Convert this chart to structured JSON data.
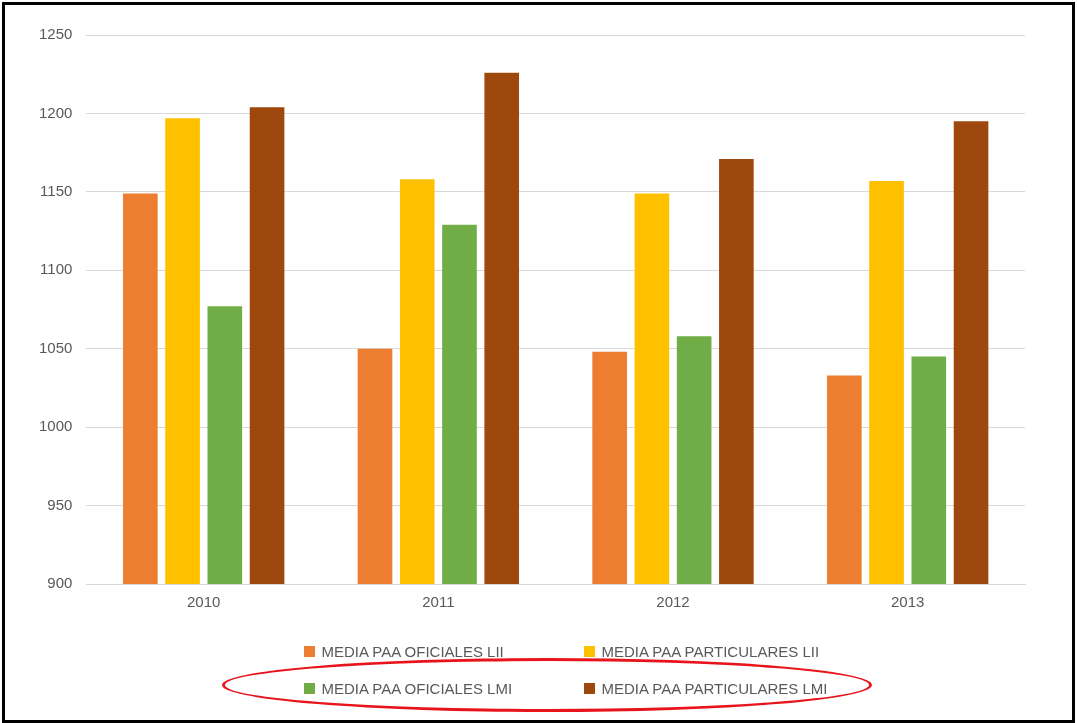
{
  "chart_data": {
    "type": "bar",
    "categories": [
      "2010",
      "2011",
      "2012",
      "2013"
    ],
    "series": [
      {
        "name": "MEDIA PAA OFICIALES LII",
        "color": "#ed7d31",
        "values": [
          1149,
          1050,
          1048,
          1033
        ]
      },
      {
        "name": "MEDIA PAA PARTICULARES LII",
        "color": "#ffc000",
        "values": [
          1197,
          1158,
          1149,
          1157
        ]
      },
      {
        "name": "MEDIA PAA OFICIALES LMI",
        "color": "#70ad47",
        "values": [
          1077,
          1129,
          1058,
          1045
        ]
      },
      {
        "name": "MEDIA PAA PARTICULARES LMI",
        "color": "#9e480e",
        "values": [
          1204,
          1226,
          1171,
          1195
        ]
      }
    ],
    "ylim": [
      900,
      1250
    ],
    "yticks": [
      900,
      950,
      1000,
      1050,
      1100,
      1150,
      1200,
      1250
    ],
    "grid": "y",
    "legend": "bottom"
  }
}
